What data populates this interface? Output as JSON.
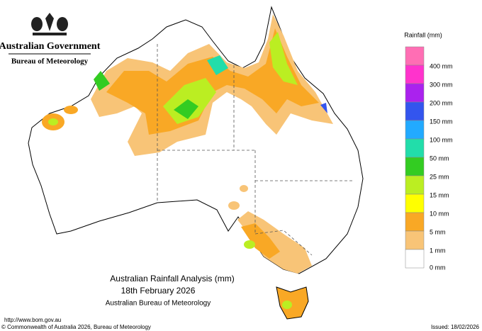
{
  "header": {
    "government": "Australian Government",
    "agency": "Bureau of Meteorology"
  },
  "legend": {
    "title": "Rainfall (mm)",
    "items": [
      {
        "label": null,
        "color": "#ff6eb4"
      },
      {
        "label": "400 mm",
        "color": "#ff33cc"
      },
      {
        "label": "300 mm",
        "color": "#aa22ee"
      },
      {
        "label": "200 mm",
        "color": "#3355ee"
      },
      {
        "label": "150 mm",
        "color": "#22aaff"
      },
      {
        "label": "100 mm",
        "color": "#22ddaa"
      },
      {
        "label": "50 mm",
        "color": "#33cc22"
      },
      {
        "label": "25 mm",
        "color": "#bbee22"
      },
      {
        "label": "15 mm",
        "color": "#ffff00"
      },
      {
        "label": "10 mm",
        "color": "#f9a825"
      },
      {
        "label": "5 mm",
        "color": "#f8c477"
      },
      {
        "label": "1 mm",
        "color": "#ffffff"
      }
    ],
    "bottom_label": "0 mm"
  },
  "caption": {
    "title": "Australian Rainfall Analysis (mm)",
    "date": "18th February 2026",
    "source": "Australian Bureau of Meteorology"
  },
  "footer": {
    "url": "http://www.bom.gov.au",
    "copyright": "© Commonwealth of Australia 2026, Bureau of Meteorology",
    "issued": "Issued: 18/02/2026"
  }
}
